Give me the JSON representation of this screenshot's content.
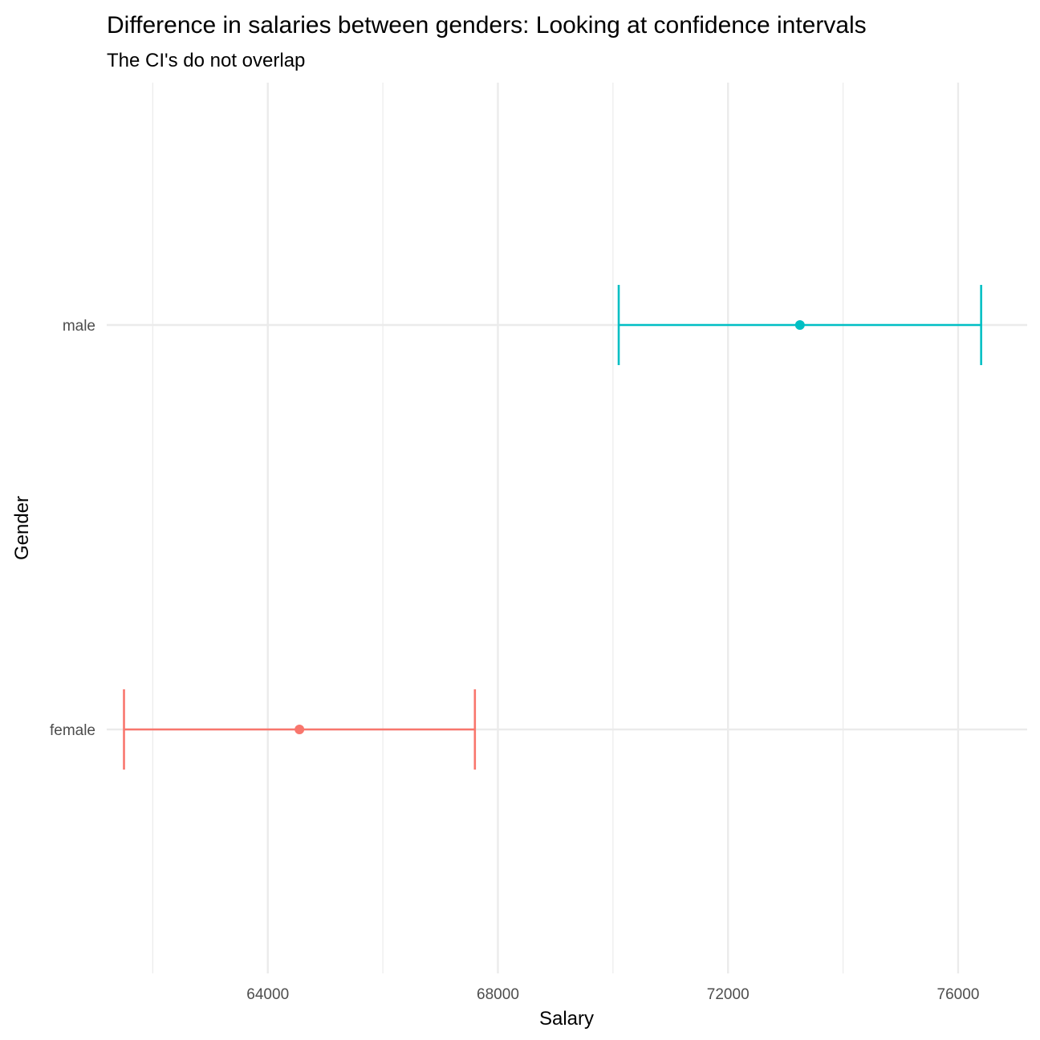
{
  "chart_data": {
    "type": "errorbar",
    "title": "Difference in salaries between genders: Looking at confidence intervals",
    "subtitle": "The CI's do not overlap",
    "xlabel": "Salary",
    "ylabel": "Gender",
    "xlim": [
      61200,
      77200
    ],
    "x_ticks": [
      64000,
      68000,
      72000,
      76000
    ],
    "x_tick_labels": [
      "64000",
      "68000",
      "72000",
      "76000"
    ],
    "x_minor_ticks": [
      62000,
      66000,
      70000,
      74000
    ],
    "categories": [
      "female",
      "male"
    ],
    "series": [
      {
        "category": "female",
        "mean": 64550,
        "ci_low": 61500,
        "ci_high": 67600,
        "color": "#F8766D"
      },
      {
        "category": "male",
        "mean": 73250,
        "ci_low": 70100,
        "ci_high": 76400,
        "color": "#00BFC4"
      }
    ],
    "grid": true,
    "legend": "none"
  }
}
